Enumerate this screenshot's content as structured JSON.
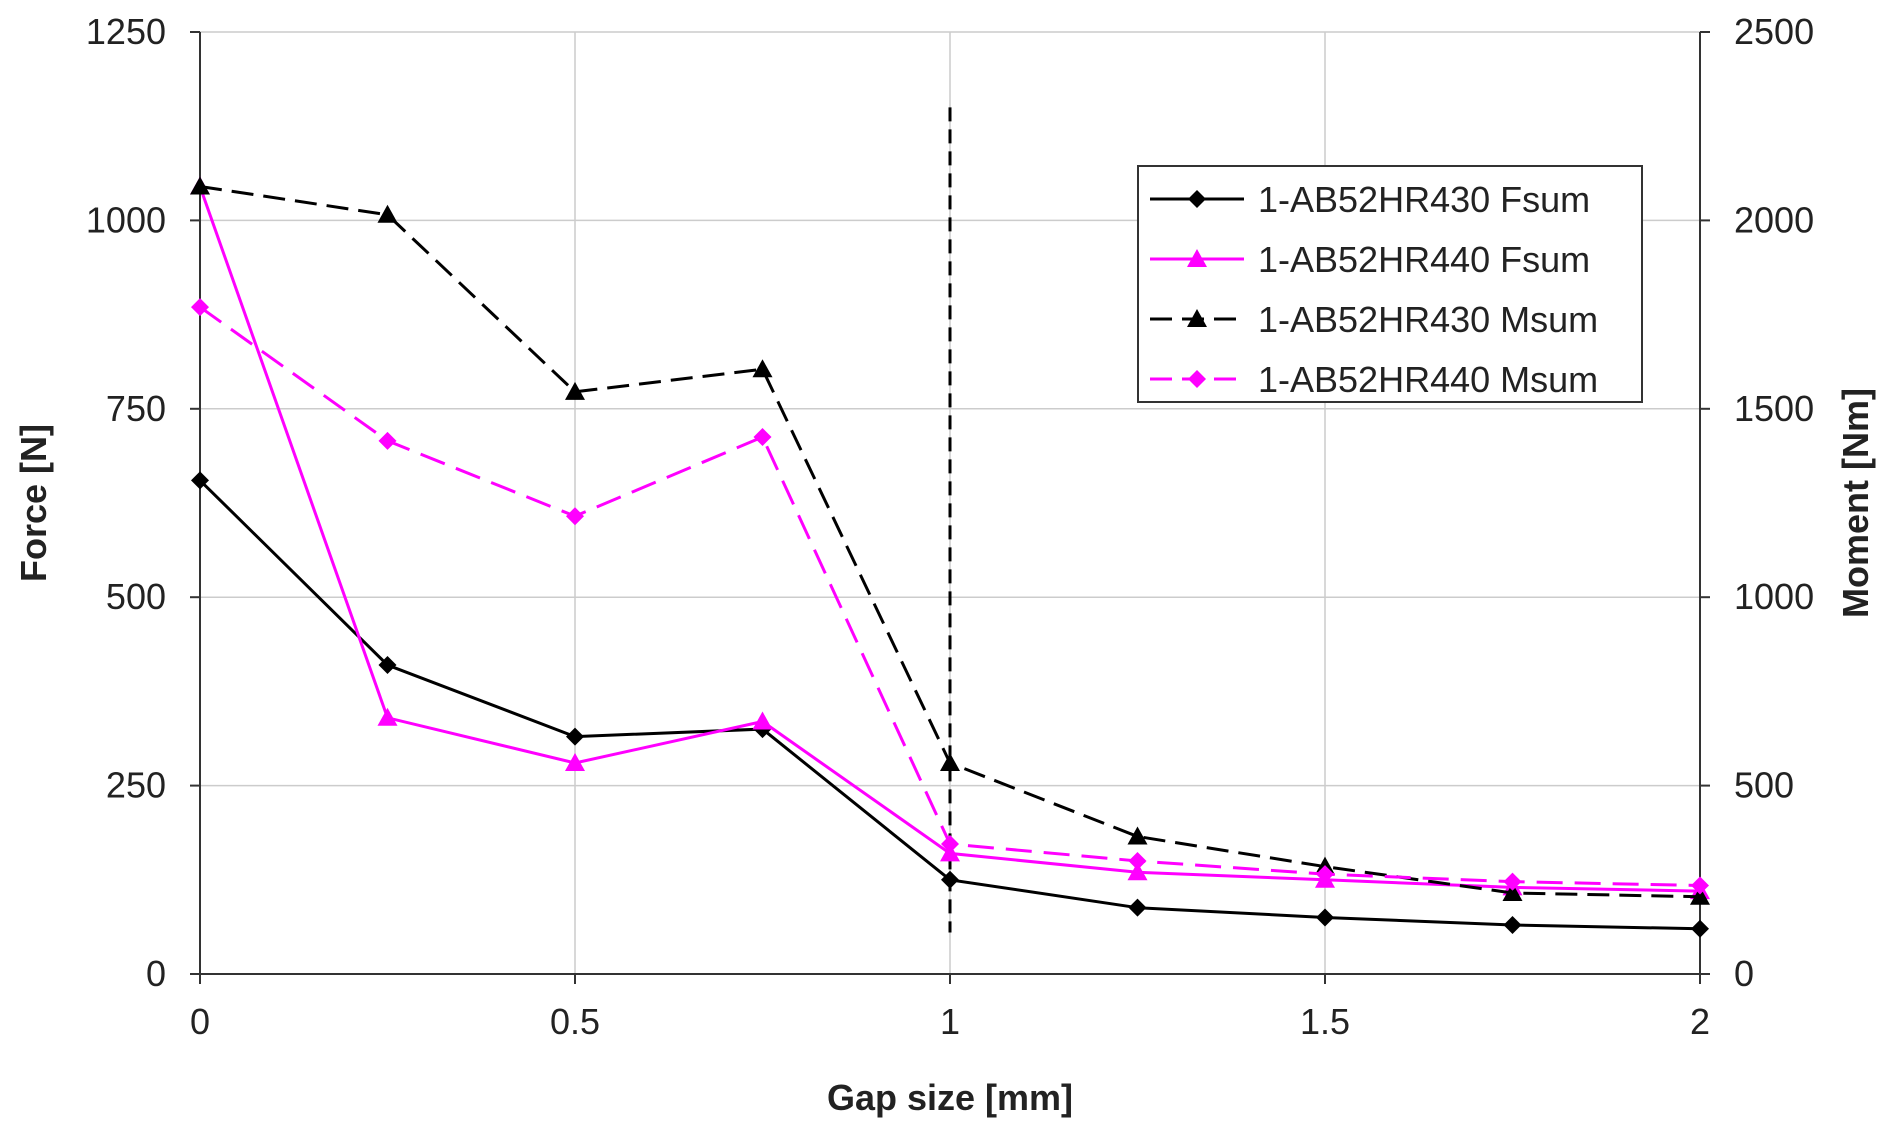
{
  "chart_data": {
    "type": "line",
    "title": "",
    "xlabel": "Gap size [mm]",
    "ylabel_left": "Force [N]",
    "ylabel_right": "Moment [Nm]",
    "xlim": [
      0,
      2
    ],
    "ylim_left": [
      0,
      1250
    ],
    "ylim_right": [
      0,
      2500
    ],
    "x_ticks": [
      0,
      0.5,
      1,
      1.5,
      2
    ],
    "y_left_ticks": [
      0,
      250,
      500,
      750,
      1000,
      1250
    ],
    "y_right_ticks": [
      0,
      500,
      1000,
      1500,
      2000,
      2500
    ],
    "grid": true,
    "legend_position": "top-right",
    "x": [
      0,
      0.25,
      0.5,
      0.75,
      1,
      1.25,
      1.5,
      1.75,
      2
    ],
    "series": [
      {
        "name": "1-AB52HR430 Fsum",
        "axis": "left",
        "color": "#000000",
        "style": "solid",
        "marker": "diamond",
        "values": [
          655,
          410,
          315,
          325,
          125,
          88,
          75,
          65,
          60
        ]
      },
      {
        "name": "1-AB52HR440 Fsum",
        "axis": "left",
        "color": "#ff00ff",
        "style": "solid",
        "marker": "triangle",
        "values": [
          1045,
          340,
          280,
          335,
          160,
          135,
          125,
          115,
          110
        ]
      },
      {
        "name": "1-AB52HR430 Msum",
        "axis": "right",
        "color": "#000000",
        "style": "dashed",
        "marker": "triangle",
        "values": [
          2090,
          2015,
          1545,
          1605,
          560,
          365,
          285,
          215,
          205
        ]
      },
      {
        "name": "1-AB52HR440 Msum",
        "axis": "right",
        "color": "#ff00ff",
        "style": "dashed",
        "marker": "diamond",
        "values": [
          1770,
          1415,
          1215,
          1425,
          345,
          300,
          265,
          245,
          235
        ]
      }
    ],
    "vertical_reference_line": {
      "x": 1,
      "y_right_range": [
        110,
        2300
      ],
      "color": "#000000",
      "style": "dashed"
    }
  }
}
